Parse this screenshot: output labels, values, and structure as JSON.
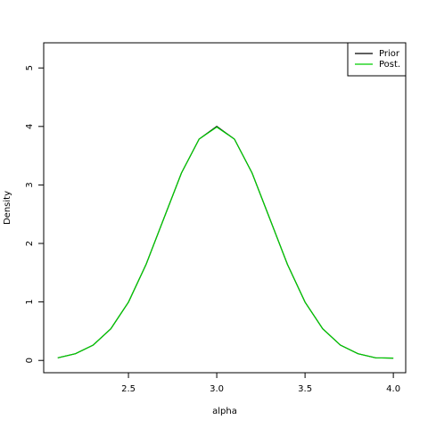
{
  "chart_data": {
    "type": "line",
    "xlabel": "alpha",
    "ylabel": "Density",
    "x": [
      2.1,
      2.2,
      2.3,
      2.4,
      2.5,
      2.6,
      2.7,
      2.8,
      2.9,
      3.0,
      3.1,
      3.2,
      3.3,
      3.4,
      3.5,
      3.6,
      3.7,
      3.8,
      3.9,
      4.0
    ],
    "series": [
      {
        "name": "Prior",
        "color": "#000000",
        "values": [
          0.044,
          0.114,
          0.263,
          0.541,
          0.997,
          1.644,
          2.426,
          3.204,
          3.784,
          4.0,
          3.784,
          3.204,
          2.426,
          1.644,
          0.997,
          0.541,
          0.263,
          0.114,
          0.044,
          0.04
        ]
      },
      {
        "name": "Post.",
        "color": "#00cd00",
        "values": [
          0.044,
          0.114,
          0.263,
          0.541,
          0.997,
          1.644,
          2.426,
          3.204,
          3.784,
          3.99,
          3.784,
          3.204,
          2.426,
          1.644,
          0.997,
          0.541,
          0.263,
          0.114,
          0.044,
          0.04
        ]
      }
    ],
    "xlim": [
      2.02,
      4.07
    ],
    "xticks": [
      2.5,
      3.0,
      3.5,
      4.0
    ],
    "ylim": [
      -0.21,
      5.43
    ],
    "yticks": [
      0,
      1,
      2,
      3,
      4,
      5
    ],
    "legend": "topright"
  }
}
